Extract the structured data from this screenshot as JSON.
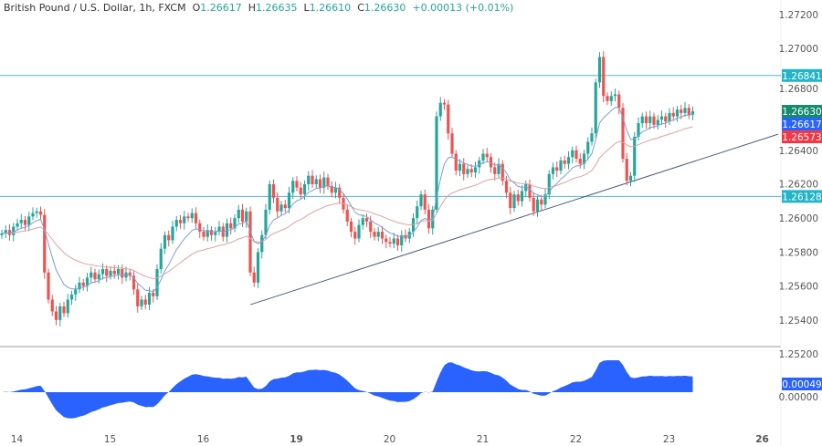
{
  "header": {
    "symbol": "British Pound / U.S. Dollar, 1h, FXCM",
    "open_label": "O",
    "open": "1.26617",
    "high_label": "H",
    "high": "1.26635",
    "low_label": "L",
    "low": "1.26610",
    "close_label": "C",
    "close": "1.26630",
    "change": "+0.00013 (+0.01%)"
  },
  "colors": {
    "up": "#26a69a",
    "down": "#ef5350",
    "fast_ma": "#7b9fd4",
    "slow_ma": "#e3a0a0",
    "level_line": "#4fb8c9",
    "trendline": "#4a5f80",
    "oscillator": "#2962ff",
    "badge_close": "#148a6e",
    "badge_fast": "#2962ff",
    "badge_slow": "#f23645",
    "badge_level": "#22b5c9"
  },
  "chart_data": {
    "type": "candlestick",
    "ylim": [
      1.252,
      1.273
    ],
    "y_ticks": [
      "1.27200",
      "1.27000",
      "1.26800",
      "1.26400",
      "1.26200",
      "1.26000",
      "1.25800",
      "1.25600",
      "1.25400",
      "1.25200"
    ],
    "x_ticks": [
      {
        "label": "14",
        "index": 2
      },
      {
        "label": "15",
        "index": 26
      },
      {
        "label": "16",
        "index": 50
      },
      {
        "label": "19",
        "index": 74
      },
      {
        "label": "20",
        "index": 98
      },
      {
        "label": "21",
        "index": 122
      },
      {
        "label": "22",
        "index": 146
      },
      {
        "label": "23",
        "index": 170
      },
      {
        "label": "26",
        "index": 194
      }
    ],
    "start_open": 1.259,
    "closes": [
      1.2591,
      1.2593,
      1.259,
      1.2595,
      1.2597,
      1.2599,
      1.2596,
      1.2601,
      1.2603,
      1.2604,
      1.2602,
      1.2568,
      1.2552,
      1.2545,
      1.254,
      1.2548,
      1.2544,
      1.2552,
      1.2555,
      1.2558,
      1.2562,
      1.256,
      1.2565,
      1.2568,
      1.2564,
      1.2567,
      1.257,
      1.2566,
      1.2569,
      1.2567,
      1.257,
      1.2565,
      1.2568,
      1.2566,
      1.2558,
      1.2548,
      1.2552,
      1.2549,
      1.2556,
      1.2554,
      1.257,
      1.2582,
      1.259,
      1.2587,
      1.2595,
      1.2599,
      1.2597,
      1.2601,
      1.26,
      1.2603,
      1.2597,
      1.2592,
      1.2589,
      1.2593,
      1.259,
      1.2592,
      1.2595,
      1.2589,
      1.2597,
      1.2594,
      1.26,
      1.2605,
      1.2598,
      1.2604,
      1.2568,
      1.2562,
      1.258,
      1.259,
      1.2605,
      1.262,
      1.2612,
      1.2604,
      1.2608,
      1.2606,
      1.2615,
      1.2622,
      1.2618,
      1.2614,
      1.262,
      1.2625,
      1.262,
      1.2623,
      1.2618,
      1.2624,
      1.2619,
      1.2615,
      1.2618,
      1.2612,
      1.2605,
      1.2598,
      1.2592,
      1.2588,
      1.2596,
      1.26,
      1.2598,
      1.2592,
      1.2589,
      1.2592,
      1.2588,
      1.2586,
      1.2585,
      1.2588,
      1.2584,
      1.259,
      1.2588,
      1.2592,
      1.26,
      1.2607,
      1.2614,
      1.2605,
      1.2594,
      1.2605,
      1.266,
      1.2668,
      1.2667,
      1.265,
      1.2638,
      1.2628,
      1.2632,
      1.2626,
      1.2629,
      1.2627,
      1.263,
      1.2634,
      1.2638,
      1.2636,
      1.263,
      1.2626,
      1.2632,
      1.2622,
      1.2615,
      1.2606,
      1.2614,
      1.261,
      1.2616,
      1.262,
      1.2612,
      1.2604,
      1.2611,
      1.2608,
      1.2614,
      1.2626,
      1.263,
      1.2628,
      1.2634,
      1.2632,
      1.2636,
      1.264,
      1.2635,
      1.2632,
      1.2638,
      1.2645,
      1.265,
      1.268,
      1.2695,
      1.2672,
      1.2669,
      1.2672,
      1.2673,
      1.2665,
      1.2635,
      1.2622,
      1.2625,
      1.2648,
      1.2656,
      1.266,
      1.2656,
      1.266,
      1.2655,
      1.2658,
      1.266,
      1.2657,
      1.2662,
      1.266,
      1.2664,
      1.2662,
      1.2665,
      1.2661,
      1.2663
    ],
    "horizontal_levels": [
      "1.26841",
      "1.26128"
    ],
    "trendline": {
      "from": [
        64,
        1.2549
      ],
      "to": [
        200,
        1.26495
      ]
    },
    "price_badges": {
      "close": "1.26630",
      "fast_ma": "1.26617",
      "slow_ma": "1.26573"
    },
    "oscillator": {
      "zero_label": "0.00000",
      "last_label": "0.00049"
    }
  }
}
